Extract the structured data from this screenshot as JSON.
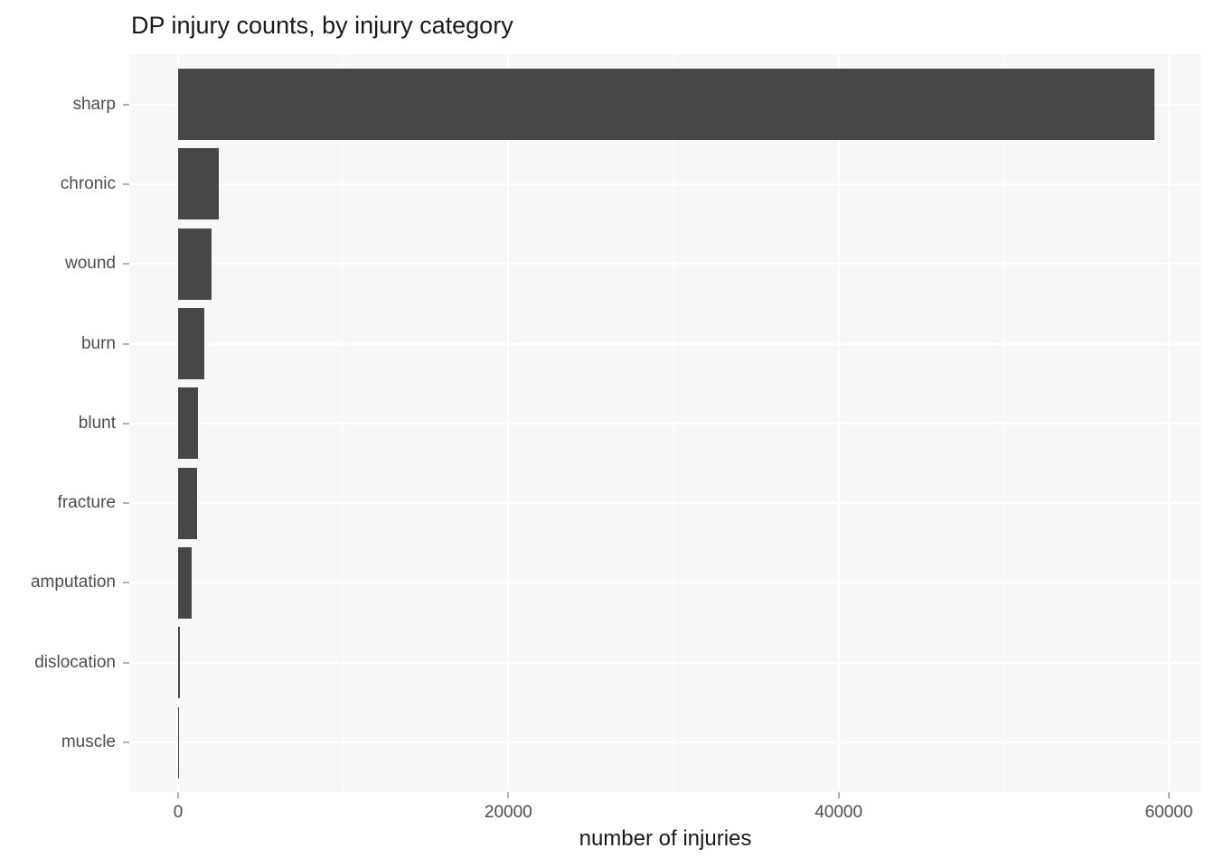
{
  "page": {
    "background": "#ffffff"
  },
  "chart_data": {
    "type": "bar",
    "orientation": "horizontal",
    "title": "DP injury counts, by injury category",
    "xlabel": "number of injuries",
    "ylabel": "",
    "categories": [
      "sharp",
      "chronic",
      "wound",
      "burn",
      "blunt",
      "fracture",
      "amputation",
      "dislocation",
      "muscle"
    ],
    "values": [
      59100,
      2450,
      2000,
      1590,
      1200,
      1130,
      840,
      110,
      10
    ],
    "x_ticks": [
      0,
      20000,
      40000,
      60000
    ],
    "x_tick_labels": [
      "0",
      "20000",
      "40000",
      "60000"
    ],
    "x_minor_gridlines": [
      10000,
      30000,
      50000
    ],
    "xlim": [
      0,
      60000
    ],
    "grid": true,
    "legend": false,
    "theme": {
      "bar_fill": "#474747",
      "panel_background": "#f7f7f7",
      "gridline_color": "#ffffff",
      "axis_text_color": "#4d4d4d",
      "tick_mark_color": "#b3b3b3",
      "title_color": "#1a1a1a"
    }
  }
}
